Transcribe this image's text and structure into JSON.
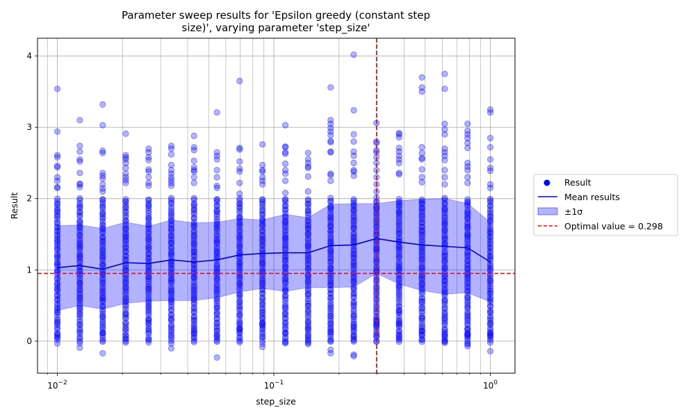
{
  "chart_data": {
    "type": "scatter",
    "title_lines": [
      "Parameter sweep results for 'Epsilon greedy (constant step",
      "size)', varying parameter 'step_size'"
    ],
    "xlabel": "step_size",
    "ylabel": "Result",
    "xscale": "log",
    "xlim": [
      0.0081,
      1.3
    ],
    "ylim": [
      -0.45,
      4.25
    ],
    "grid": true,
    "x_tick_labels": [
      {
        "value": 0.01,
        "base": "10",
        "exp": "−2"
      },
      {
        "value": 0.1,
        "base": "10",
        "exp": "−1"
      },
      {
        "value": 1,
        "base": "10",
        "exp": "0"
      }
    ],
    "y_ticks": [
      0,
      1,
      2,
      3,
      4
    ],
    "x": [
      0.01,
      0.0127,
      0.0162,
      0.0207,
      0.0264,
      0.0336,
      0.0428,
      0.0546,
      0.0695,
      0.0886,
      0.113,
      0.144,
      0.183,
      0.234,
      0.298,
      0.379,
      0.483,
      0.616,
      0.785,
      1.0
    ],
    "series": [
      {
        "name": "Result",
        "kind": "points",
        "color": "#0000ff",
        "outliers": [
          [
            3.54,
            2.94,
            2.61,
            2.58,
            2.46,
            2.44,
            2.3,
            2.25,
            2.16,
            2.15,
            0.1
          ],
          [
            3.1,
            2.74,
            2.66,
            2.55,
            2.52,
            2.36,
            2.21,
            2.2,
            2.16,
            -0.09
          ],
          [
            3.32,
            3.03,
            2.67,
            2.64,
            2.36,
            2.32,
            2.28,
            2.2,
            2.14,
            2.1,
            0.12,
            -0.17
          ],
          [
            2.91,
            2.61,
            2.58,
            2.55,
            2.5,
            2.43,
            2.35,
            2.3,
            2.26,
            2.22,
            0.04
          ],
          [
            2.7,
            2.65,
            2.58,
            2.54,
            2.41,
            2.38,
            2.3,
            2.22,
            2.18,
            0.3
          ],
          [
            2.74,
            2.7,
            2.62,
            2.47,
            2.4,
            2.35,
            2.3,
            2.26,
            2.22,
            2.18,
            -0.1
          ],
          [
            2.88,
            2.72,
            2.68,
            2.53,
            2.44,
            2.4,
            2.38,
            2.3,
            2.22,
            0.15,
            0.1
          ],
          [
            3.21,
            2.65,
            2.6,
            2.55,
            2.4,
            2.3,
            2.18,
            2.15,
            0.09,
            -0.23
          ],
          [
            3.65,
            2.71,
            2.69,
            2.52,
            2.42,
            2.38,
            2.22,
            2.07,
            0.18,
            0.15
          ],
          [
            2.76,
            2.47,
            2.4,
            2.38,
            2.3,
            2.25,
            2.2,
            0.25,
            0.22,
            -0.08
          ],
          [
            3.03,
            2.73,
            2.72,
            2.65,
            2.63,
            2.49,
            2.4,
            2.35,
            2.25,
            2.08,
            0.12,
            -0.03
          ],
          [
            2.64,
            2.55,
            2.5,
            2.45,
            2.43,
            2.31,
            2.1,
            0.17,
            0.0,
            -0.04
          ],
          [
            3.56,
            3.1,
            3.05,
            2.99,
            2.94,
            2.89,
            2.81,
            2.79,
            2.66,
            2.65,
            2.35,
            2.33,
            2.25,
            0.25,
            0.13,
            -0.12,
            -0.17
          ],
          [
            4.02,
            3.24,
            2.9,
            2.8,
            2.66,
            2.6,
            2.5,
            2.4,
            2.38,
            2.32,
            0.2,
            0.06,
            -0.19,
            -0.21
          ],
          [
            3.06,
            2.8,
            2.78,
            2.68,
            2.65,
            2.58,
            2.5,
            2.4,
            2.3,
            2.2,
            2.1,
            0.3,
            0.25,
            0.22
          ],
          [
            2.92,
            2.9,
            2.86,
            2.71,
            2.66,
            2.6,
            2.55,
            2.5,
            2.36,
            2.34,
            0.4,
            0.24,
            0.06
          ],
          [
            3.7,
            3.56,
            3.5,
            2.72,
            2.64,
            2.57,
            2.55,
            2.41,
            2.3,
            2.23,
            0.15,
            0.11
          ],
          [
            3.75,
            3.54,
            3.05,
            2.97,
            2.9,
            2.7,
            2.65,
            2.6,
            2.54,
            2.4,
            2.3,
            2.2,
            0.1,
            0.02,
            -0.01
          ],
          [
            3.05,
            2.95,
            2.9,
            2.85,
            2.78,
            2.71,
            2.5,
            2.45,
            2.4,
            2.3,
            2.22,
            0.17,
            0.1,
            0.08,
            -0.04,
            -0.07
          ],
          [
            3.25,
            3.21,
            2.85,
            2.72,
            2.55,
            2.43,
            2.39,
            2.2,
            2.15,
            0.12,
            0.08,
            -0.14
          ]
        ]
      },
      {
        "name": "Mean results",
        "kind": "line",
        "color": "#0000cd",
        "values": [
          1.03,
          1.06,
          1.01,
          1.1,
          1.09,
          1.14,
          1.11,
          1.14,
          1.21,
          1.23,
          1.24,
          1.24,
          1.34,
          1.35,
          1.44,
          1.39,
          1.35,
          1.33,
          1.31,
          1.11
        ]
      },
      {
        "name": "±1σ",
        "kind": "band",
        "color": "#0000ff",
        "upper": [
          1.62,
          1.63,
          1.58,
          1.67,
          1.61,
          1.7,
          1.66,
          1.67,
          1.72,
          1.7,
          1.78,
          1.73,
          1.92,
          1.93,
          1.93,
          1.97,
          1.99,
          2.0,
          1.93,
          1.67
        ],
        "lower": [
          0.43,
          0.5,
          0.45,
          0.53,
          0.56,
          0.57,
          0.57,
          0.61,
          0.69,
          0.74,
          0.7,
          0.75,
          0.75,
          0.76,
          0.95,
          0.8,
          0.71,
          0.66,
          0.68,
          0.55
        ]
      }
    ],
    "dense_band": {
      "lower": -0.02,
      "upper": 2.0
    },
    "optimal": {
      "x": 0.298,
      "y": 0.95,
      "color": "#ff0000",
      "label": "Optimal value = 0.298"
    },
    "legend": {
      "position": "right",
      "entries": [
        "Result",
        "Mean results",
        "±1σ",
        "Optimal value = 0.298"
      ]
    }
  }
}
